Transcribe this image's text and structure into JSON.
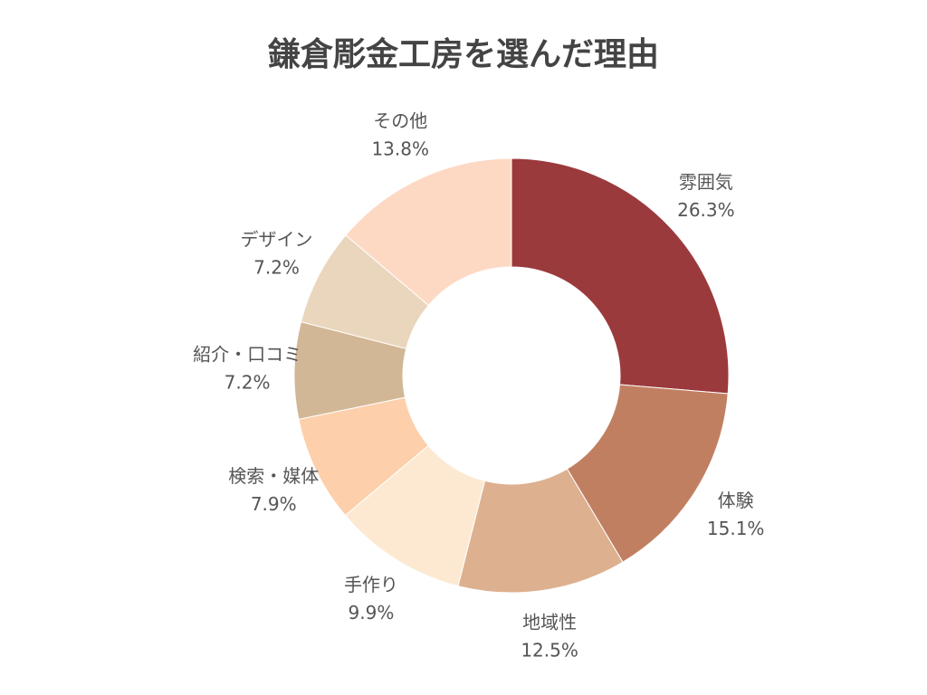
{
  "chart_data": {
    "type": "donut",
    "title": "鎌倉彫金工房を選んだ理由",
    "categories": [
      "雰囲気",
      "体験",
      "地域性",
      "手作り",
      "検索・媒体",
      "紹介・口コミ",
      "デザイン",
      "その他"
    ],
    "values": [
      26.3,
      15.1,
      12.5,
      9.9,
      7.9,
      7.2,
      7.2,
      13.8
    ],
    "value_labels": [
      "26.3%",
      "15.1%",
      "12.5%",
      "9.9%",
      "7.9%",
      "7.2%",
      "7.2%",
      "13.8%"
    ],
    "colors": [
      "#9b3a3c",
      "#c17f62",
      "#ddb08f",
      "#fde9d2",
      "#fdcfaa",
      "#d2b796",
      "#ead6bd",
      "#fdd9c4"
    ]
  }
}
